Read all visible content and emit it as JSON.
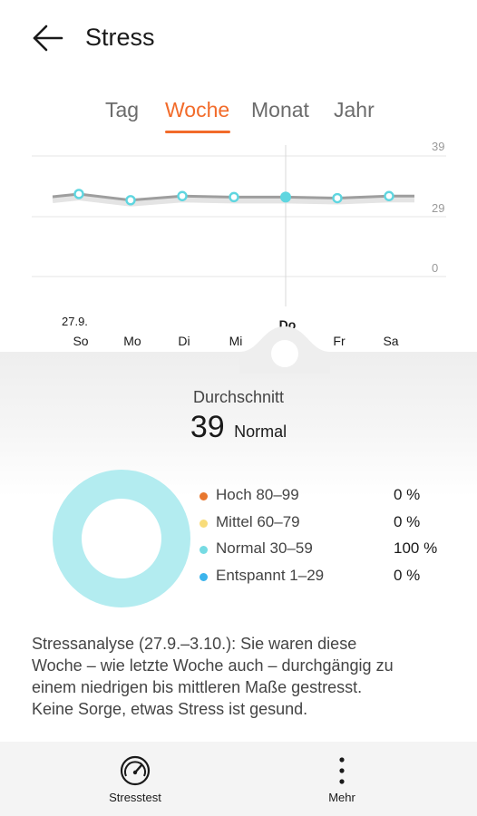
{
  "header": {
    "title": "Stress"
  },
  "tabs": [
    {
      "label": "Tag",
      "active": false
    },
    {
      "label": "Woche",
      "active": true
    },
    {
      "label": "Monat",
      "active": false
    },
    {
      "label": "Jahr",
      "active": false
    }
  ],
  "chart_data": {
    "type": "line",
    "date_label": "27.9.",
    "categories": [
      "So",
      "Mo",
      "Di",
      "Mi",
      "Do",
      "Fr",
      "Sa"
    ],
    "selected": "Do",
    "series": [
      {
        "values": [
          40,
          37,
          39,
          38.5,
          38.5,
          38,
          39
        ]
      }
    ],
    "yticks": [
      "39",
      "29",
      "0"
    ],
    "line_color": "#9e9e9e",
    "point_color": "#5fd6e0"
  },
  "summary": {
    "label": "Durchschnitt",
    "value": "39",
    "status": "Normal"
  },
  "distribution": [
    {
      "label": "Hoch 80–99",
      "value": "0 %",
      "color": "#e8772e"
    },
    {
      "label": "Mittel 60–79",
      "value": "0 %",
      "color": "#f8dc7a"
    },
    {
      "label": "Normal 30–59",
      "value": "100 %",
      "color": "#76dbe3"
    },
    {
      "label": "Entspannt 1–29",
      "value": "0 %",
      "color": "#3cb4ec"
    }
  ],
  "donut": {
    "color": "#b3ecf0",
    "normal_fraction": 1.0
  },
  "analysis": {
    "lines": [
      "Stressanalyse (27.9.–3.10.): Sie waren diese",
      "Woche – wie letzte Woche auch – durchgängig zu",
      "einem niedrigen bis mittleren Maße gestresst.",
      "Keine Sorge, etwas Stress ist gesund."
    ]
  },
  "bottom_bar": {
    "stresstest_label": "Stresstest",
    "more_label": "Mehr"
  }
}
